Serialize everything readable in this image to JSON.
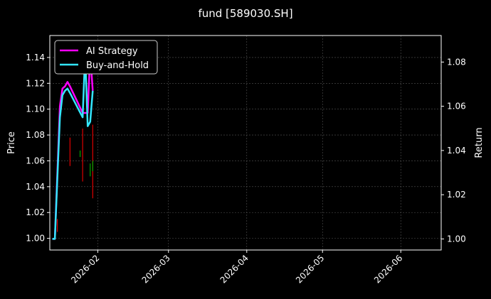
{
  "chart_data": {
    "type": "line",
    "title": "fund [589030.SH]",
    "ylabel_left": "Price",
    "ylabel_right": "Return",
    "x_ticks": [
      "2026-02",
      "2026-03",
      "2026-04",
      "2026-05",
      "2026-06"
    ],
    "y_ticks_left": [
      "1.00",
      "1.02",
      "1.04",
      "1.06",
      "1.08",
      "1.10",
      "1.12",
      "1.14"
    ],
    "y_ticks_right": [
      "1.00",
      "1.02",
      "1.04",
      "1.06",
      "1.08"
    ],
    "xlim": [
      "2026-01-13",
      "2026-06-17"
    ],
    "ylim_left": [
      0.991,
      1.157
    ],
    "ylim_right": [
      0.995,
      1.092
    ],
    "grid": true,
    "legend_position": "top-left",
    "colors": {
      "background": "#000000",
      "ai_strategy": "#ff00ff",
      "buy_and_hold": "#33e6ff",
      "up": "#00aa00",
      "down": "#dd0000",
      "grid": "#555555",
      "text": "#ffffff"
    },
    "series": [
      {
        "name": "AI Strategy",
        "axis": "right",
        "x": [
          "2026-01-14",
          "2026-01-15",
          "2026-01-16",
          "2026-01-17",
          "2026-01-18",
          "2026-01-19",
          "2026-01-20",
          "2026-01-21",
          "2026-01-26",
          "2026-01-27",
          "2026-01-28",
          "2026-01-29",
          "2026-01-30"
        ],
        "values": [
          1.0,
          1.0,
          1.03,
          1.06,
          1.068,
          1.069,
          1.071,
          1.069,
          1.057,
          1.057,
          1.057,
          1.084,
          1.067
        ]
      },
      {
        "name": "Buy-and-Hold",
        "axis": "right",
        "x": [
          "2026-01-14",
          "2026-01-15",
          "2026-01-16",
          "2026-01-17",
          "2026-01-18",
          "2026-01-19",
          "2026-01-20",
          "2026-01-21",
          "2026-01-26",
          "2026-01-27",
          "2026-01-28",
          "2026-01-29",
          "2026-01-30"
        ],
        "values": [
          1.0,
          1.0,
          1.028,
          1.055,
          1.065,
          1.067,
          1.068,
          1.066,
          1.055,
          1.084,
          1.051,
          1.053,
          1.067
        ]
      }
    ],
    "price_bars": [
      {
        "x": "2026-01-16",
        "low": 1.005,
        "high": 1.015,
        "direction": "down"
      },
      {
        "x": "2026-01-21",
        "low": 1.056,
        "high": 1.078,
        "direction": "down"
      },
      {
        "x": "2026-01-25",
        "low": 1.063,
        "high": 1.068,
        "direction": "up"
      },
      {
        "x": "2026-01-26",
        "low": 1.044,
        "high": 1.085,
        "direction": "down"
      },
      {
        "x": "2026-01-29",
        "low": 1.048,
        "high": 1.058,
        "direction": "up"
      },
      {
        "x": "2026-01-30",
        "low": 1.031,
        "high": 1.088,
        "direction": "down"
      },
      {
        "x": "2026-01-30",
        "low": 1.052,
        "high": 1.06,
        "direction": "up"
      }
    ]
  }
}
